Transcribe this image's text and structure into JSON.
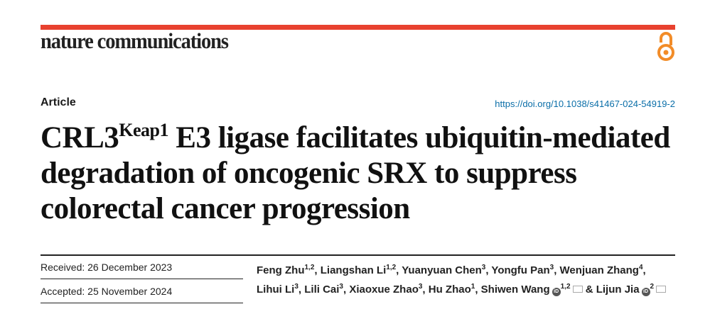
{
  "header": {
    "journal": "nature communications",
    "open_access_color": "#f28c28",
    "accent_color": "#e8412f"
  },
  "article_type": "Article",
  "doi": "https://doi.org/10.1038/s41467-024-54919-2",
  "title": {
    "prefix": "CRL3",
    "superscript": "Keap1",
    "rest": " E3 ligase facilitates ubiquitin-mediated degradation of oncogenic SRX to suppress colorectal cancer progression"
  },
  "dates": {
    "received": "Received: 26 December 2023",
    "accepted": "Accepted: 25 November 2024"
  },
  "authors": [
    {
      "name": "Feng Zhu",
      "aff": "1,2",
      "sep": ", "
    },
    {
      "name": "Liangshan Li",
      "aff": "1,2",
      "sep": ", "
    },
    {
      "name": "Yuanyuan Chen",
      "aff": "3",
      "sep": ", "
    },
    {
      "name": "Yongfu Pan",
      "aff": "3",
      "sep": ", "
    },
    {
      "name": "Wenjuan Zhang",
      "aff": "4",
      "sep": ", "
    },
    {
      "name": "Lihui Li",
      "aff": "3",
      "sep": ", "
    },
    {
      "name": "Lili Cai",
      "aff": "3",
      "sep": ", "
    },
    {
      "name": "Xiaoxue Zhao",
      "aff": "3",
      "sep": ", "
    },
    {
      "name": "Hu Zhao",
      "aff": "1",
      "sep": ", "
    },
    {
      "name": "Shiwen Wang",
      "aff": "1,2",
      "orcid": true,
      "mail": true,
      "sep": " & "
    },
    {
      "name": "Lijun Jia",
      "aff": "2",
      "orcid": true,
      "mail": true,
      "sep": ""
    }
  ]
}
